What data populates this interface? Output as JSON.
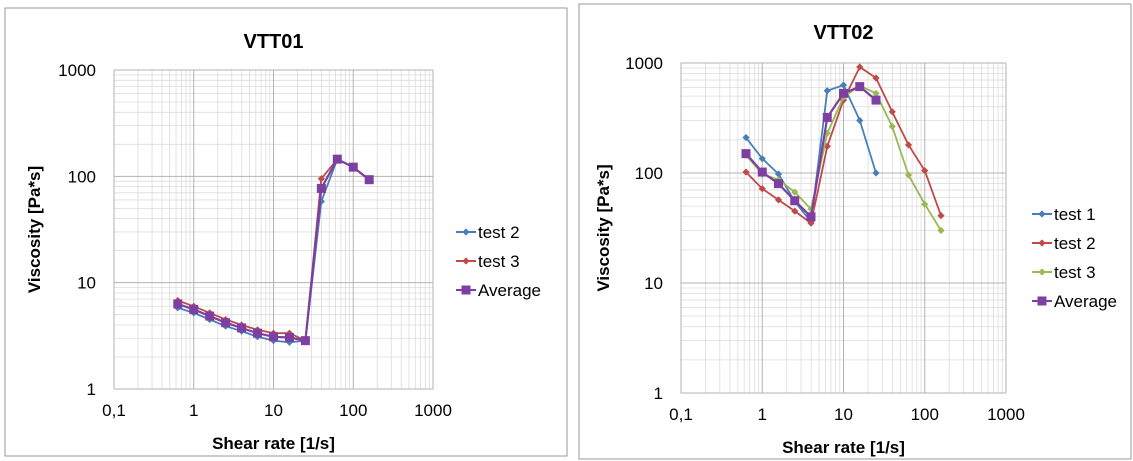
{
  "chart_data": [
    {
      "type": "line",
      "title": "VTT01",
      "xlabel": "Shear rate [1/s]",
      "ylabel": "Viscosity [Pa*s]",
      "xscale": "log",
      "yscale": "log",
      "xlim": [
        0.1,
        1000
      ],
      "ylim": [
        1,
        1000
      ],
      "xticks": [
        "0,1",
        "1",
        "10",
        "100",
        "1000"
      ],
      "yticks": [
        "1",
        "10",
        "100",
        "1000"
      ],
      "grid": true,
      "legend_position": "right",
      "series": [
        {
          "name": "test 2",
          "color": "#4a7ebb",
          "marker": "diamond",
          "x": [
            0.631,
            1,
            1.585,
            2.512,
            3.981,
            6.31,
            10,
            15.85,
            25.12,
            39.81,
            63.1,
            100,
            158.5
          ],
          "y": [
            5.8,
            5.2,
            4.5,
            3.9,
            3.5,
            3.1,
            2.85,
            2.75,
            2.85,
            58,
            145,
            122,
            93
          ]
        },
        {
          "name": "test 3",
          "color": "#be4b48",
          "marker": "diamond",
          "x": [
            0.631,
            1,
            1.585,
            2.512,
            3.981,
            6.31,
            10,
            15.85,
            25.12,
            39.81,
            63.1,
            100,
            158.5
          ],
          "y": [
            6.8,
            6.0,
            5.2,
            4.5,
            4.0,
            3.6,
            3.35,
            3.35,
            2.85,
            95,
            145,
            122,
            93
          ]
        },
        {
          "name": "Average",
          "color": "#7d3fa1",
          "marker": "square",
          "x": [
            0.631,
            1,
            1.585,
            2.512,
            3.981,
            6.31,
            10,
            15.85,
            25.12,
            39.81,
            63.1,
            100,
            158.5
          ],
          "y": [
            6.3,
            5.6,
            4.85,
            4.2,
            3.75,
            3.35,
            3.1,
            3.05,
            2.85,
            77,
            145,
            122,
            93
          ]
        }
      ]
    },
    {
      "type": "line",
      "title": "VTT02",
      "xlabel": "Shear rate [1/s]",
      "ylabel": "Viscosity [Pa*s]",
      "xscale": "log",
      "yscale": "log",
      "xlim": [
        0.1,
        1000
      ],
      "ylim": [
        1,
        1000
      ],
      "xticks": [
        "0,1",
        "1",
        "10",
        "100",
        "1000"
      ],
      "yticks": [
        "1",
        "10",
        "100",
        "1000"
      ],
      "grid": true,
      "legend_position": "right",
      "series": [
        {
          "name": "test 1",
          "color": "#4a7ebb",
          "marker": "diamond",
          "x": [
            0.631,
            1,
            1.585,
            2.512,
            3.981,
            6.31,
            10,
            15.85,
            25.12
          ],
          "y": [
            210,
            135,
            98,
            55,
            36,
            560,
            630,
            300,
            100
          ]
        },
        {
          "name": "test 2",
          "color": "#be4b48",
          "marker": "diamond",
          "x": [
            0.631,
            1,
            1.585,
            2.512,
            3.981,
            6.31,
            10,
            15.85,
            25.12,
            39.81,
            63.1,
            100,
            158.5
          ],
          "y": [
            102,
            72,
            57,
            45,
            35,
            175,
            460,
            920,
            730,
            360,
            180,
            105,
            41
          ]
        },
        {
          "name": "test 3",
          "color": "#98b954",
          "marker": "diamond",
          "x": [
            0.631,
            1,
            1.585,
            2.512,
            3.981,
            6.31,
            10,
            15.85,
            25.12,
            39.81,
            63.1,
            100,
            158.5
          ],
          "y": [
            145,
            98,
            87,
            67,
            47,
            230,
            490,
            620,
            530,
            265,
            96,
            52,
            30
          ]
        },
        {
          "name": "Average",
          "color": "#7d3fa1",
          "marker": "square",
          "x": [
            0.631,
            1,
            1.585,
            2.512,
            3.981,
            6.31,
            10,
            15.85,
            25.12
          ],
          "y": [
            150,
            102,
            80,
            56,
            40,
            320,
            530,
            610,
            460
          ]
        }
      ]
    }
  ]
}
